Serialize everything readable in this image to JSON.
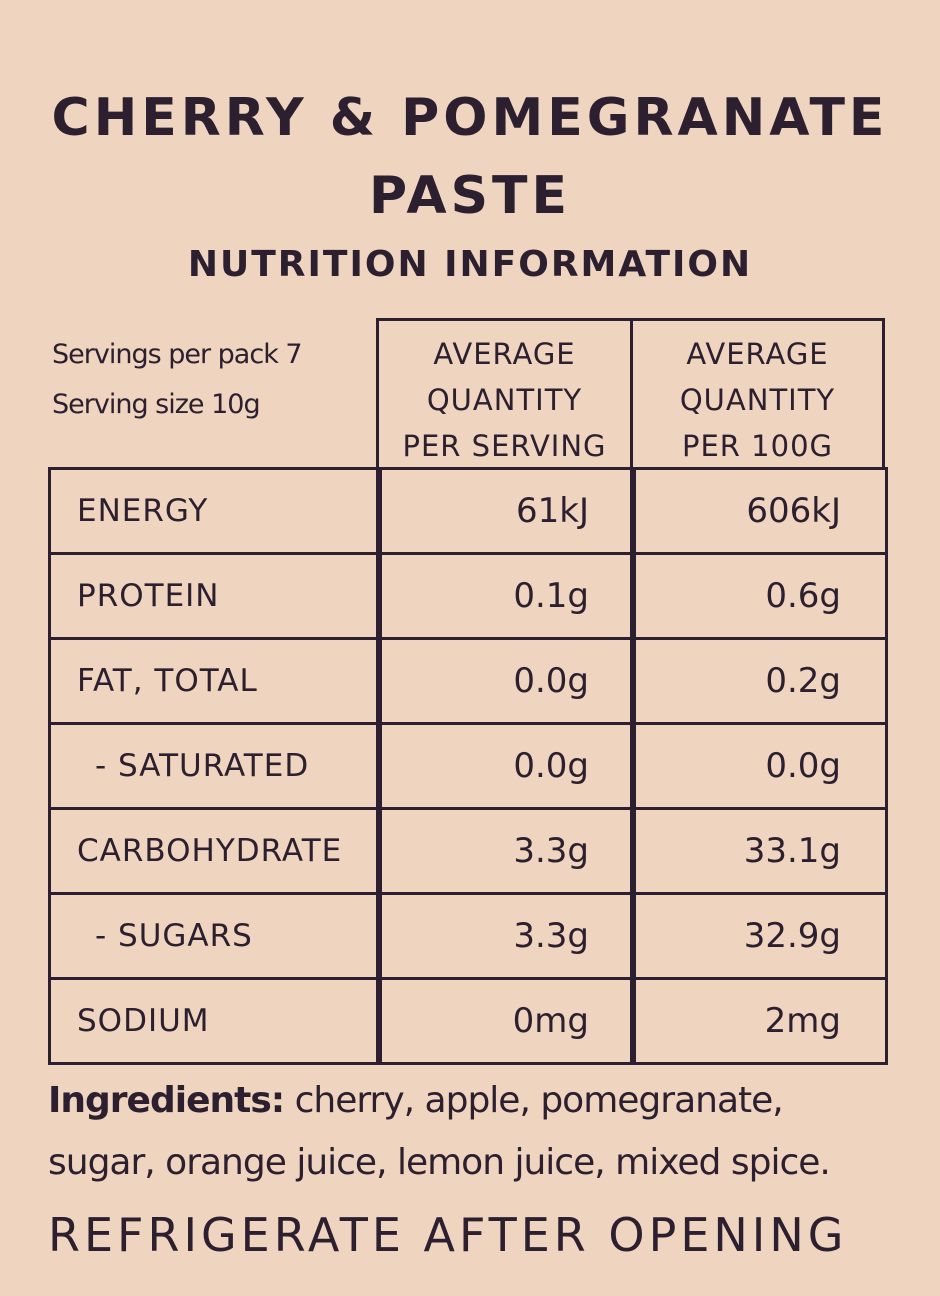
{
  "title_lines": [
    "CHERRY & POMEGRANATE",
    "PASTE"
  ],
  "subtitle": "NUTRITION INFORMATION",
  "table": {
    "servings": [
      "Servings per pack 7",
      "Serving size 10g"
    ],
    "headers": [
      [
        "AVERAGE",
        "QUANTITY",
        "PER SERVING"
      ],
      [
        "AVERAGE",
        "QUANTITY",
        "PER 100G"
      ]
    ],
    "rows": [
      [
        "ENERGY",
        "61kJ",
        "606kJ"
      ],
      [
        "PROTEIN",
        "0.1g",
        "0.6g"
      ],
      [
        "FAT, TOTAL",
        "0.0g",
        "0.2g"
      ],
      [
        "- SATURATED",
        "0.0g",
        "0.0g"
      ],
      [
        "CARBOHYDRATE",
        "3.3g",
        "33.1g"
      ],
      [
        "- SUGARS",
        "3.3g",
        "32.9g"
      ],
      [
        "SODIUM",
        "0mg",
        "2mg"
      ]
    ]
  },
  "ingredients": {
    "label": "Ingredients:",
    "lines": [
      "cherry, apple, pomegranate,",
      "sugar, orange juice, lemon juice, mixed spice."
    ]
  },
  "footer": "REFRIGERATE AFTER OPENING"
}
